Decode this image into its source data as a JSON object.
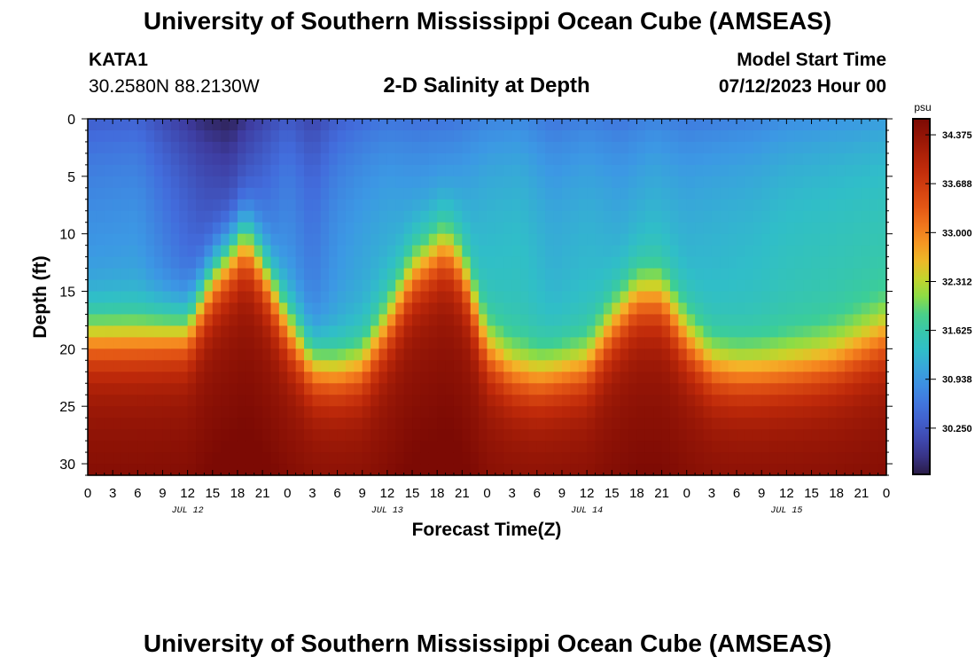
{
  "header": {
    "title": "University of Southern Mississippi Ocean Cube (AMSEAS)",
    "station": "KATA1",
    "coords": "30.2580N  88.2130W",
    "subtitle": "2-D Salinity at Depth",
    "start_label": "Model Start Time",
    "start_value": "07/12/2023 Hour 00"
  },
  "footer": {
    "title": "University of Southern Mississippi Ocean Cube (AMSEAS)"
  },
  "chart_data": {
    "type": "heatmap",
    "title": "2-D Salinity at Depth",
    "xlabel": "Forecast Time(Z)",
    "ylabel": "Depth (ft)",
    "x_ticks": [
      "0",
      "3",
      "6",
      "9",
      "12",
      "15",
      "18",
      "21",
      "0",
      "3",
      "6",
      "9",
      "12",
      "15",
      "18",
      "21",
      "0",
      "3",
      "6",
      "9",
      "12",
      "15",
      "18",
      "21",
      "0",
      "3",
      "6",
      "9",
      "12",
      "15",
      "18",
      "21",
      "0"
    ],
    "x_range_hours": [
      0,
      96
    ],
    "day_labels": [
      "JUL 12",
      "JUL 13",
      "JUL 14",
      "JUL 15"
    ],
    "y_ticks": [
      "0",
      "5",
      "10",
      "15",
      "20",
      "25",
      "30"
    ],
    "ylim": [
      0,
      31
    ],
    "colorbar": {
      "unit": "psu",
      "range": [
        29.6,
        34.6
      ],
      "ticks": [
        "34.375",
        "33.688",
        "33.000",
        "32.312",
        "31.625",
        "30.938",
        "30.250"
      ]
    },
    "halocline_depth_ft": {
      "hours": [
        0,
        6,
        12,
        15,
        19,
        21,
        24,
        27,
        30,
        33,
        36,
        39,
        43,
        45,
        48,
        51,
        54,
        57,
        60,
        63,
        66,
        69,
        72,
        75,
        78,
        81,
        84,
        87,
        90,
        93,
        96
      ],
      "depth": [
        19,
        19,
        18.5,
        14,
        10.5,
        13,
        18,
        21.5,
        22,
        21.5,
        18,
        13.5,
        11,
        13,
        20,
        22,
        22.5,
        22,
        21.5,
        18,
        15.5,
        15.5,
        19,
        21.5,
        22,
        22,
        21.8,
        21.5,
        21,
        20,
        19
      ]
    },
    "surface_salinity_psu": {
      "hours": [
        0,
        6,
        10,
        14,
        17,
        20,
        24,
        27,
        30,
        33,
        36,
        40,
        44,
        48,
        52,
        56,
        60,
        64,
        68,
        72,
        76,
        80,
        84,
        88,
        92,
        96
      ],
      "values": [
        30.35,
        30.4,
        30.05,
        29.75,
        29.65,
        29.95,
        30.3,
        30.05,
        30.35,
        30.5,
        30.6,
        30.55,
        30.6,
        30.75,
        30.8,
        30.6,
        30.7,
        30.6,
        30.75,
        30.65,
        30.7,
        30.75,
        30.85,
        30.9,
        30.95,
        31.0
      ]
    }
  }
}
